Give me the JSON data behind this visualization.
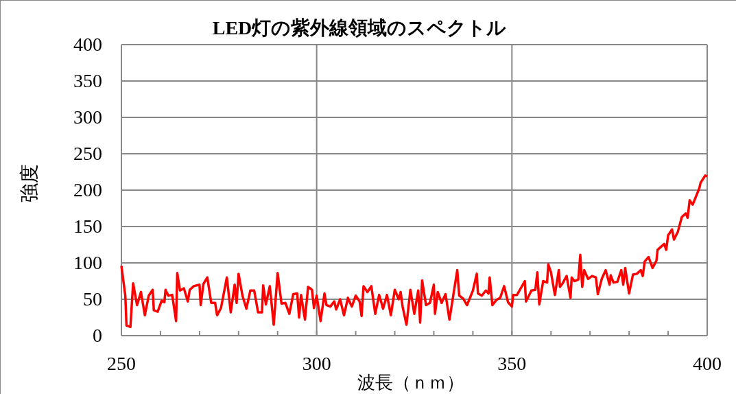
{
  "chart_data": {
    "type": "line",
    "title": "LED灯の紫外線領域のスペクトル",
    "xlabel": "波長（ｎｍ）",
    "ylabel": "強度",
    "xlim": [
      250,
      400
    ],
    "xticks": [
      250,
      {
        "value": 260,
        "label": null
      },
      {
        "value": 270,
        "label": null
      },
      {
        "value": 280,
        "label": null
      },
      {
        "value": 290,
        "label": null
      },
      300,
      {
        "value": 310,
        "label": null
      },
      {
        "value": 320,
        "label": null
      },
      {
        "value": 330,
        "label": null
      },
      {
        "value": 340,
        "label": null
      },
      350,
      {
        "value": 360,
        "label": null
      },
      {
        "value": 370,
        "label": null
      },
      {
        "value": 380,
        "label": null
      },
      {
        "value": 390,
        "label": null
      },
      400
    ],
    "ylim": [
      0,
      400
    ],
    "yticks": [
      0,
      50,
      100,
      150,
      200,
      250,
      300,
      350,
      400
    ],
    "grid": true,
    "marker": "none",
    "line_style": "solid",
    "series": [
      {
        "color": "#ff0000",
        "x": [
          250,
          251,
          251.3,
          252.3,
          253,
          254,
          255,
          256,
          257,
          258,
          258.3,
          259.3,
          260.3,
          261,
          261.3,
          262,
          263,
          264,
          264.3,
          265,
          266,
          267,
          267.5,
          268.5,
          270,
          270.3,
          271,
          272,
          273,
          274,
          274.5,
          275.5,
          277,
          278,
          279,
          279.5,
          280,
          281,
          282,
          283,
          284,
          285,
          286,
          286.3,
          287,
          288,
          289,
          290,
          291,
          292,
          293,
          294,
          295,
          295.5,
          296,
          297,
          297.8,
          298.8,
          299.3,
          300,
          301,
          302,
          302.5,
          303.5,
          304.5,
          305,
          306,
          307,
          308,
          309,
          310,
          311,
          311.5,
          312,
          313,
          314,
          315,
          316,
          317,
          318,
          319,
          320,
          321,
          321.5,
          322,
          323,
          324,
          325,
          326,
          326.5,
          327,
          328,
          329,
          330,
          330.3,
          331,
          332,
          333,
          334,
          336,
          336.5,
          337.5,
          338.5,
          340,
          341,
          341.3,
          342.3,
          343.3,
          344,
          344.3,
          345,
          346,
          347,
          348,
          349,
          350,
          350.3,
          351.3,
          353.3,
          353.6,
          355,
          356,
          356.5,
          357,
          358,
          359,
          359.3,
          360,
          361,
          362,
          362.3,
          363,
          364,
          365,
          365.3,
          366,
          367,
          367.5,
          368,
          368.5,
          369.5,
          370.5,
          371.5,
          372,
          373,
          374,
          375,
          375.3,
          376,
          377,
          378,
          378.5,
          379,
          380,
          381,
          382,
          383,
          383.5,
          384,
          385,
          386,
          387,
          387.3,
          389,
          389.5,
          390,
          391,
          391.5,
          392.5,
          393.5,
          394.5,
          395,
          395.5,
          396.3,
          398,
          398.3,
          399.5,
          400
        ],
        "values": [
          96,
          55,
          14,
          12,
          72,
          42,
          60,
          28,
          55,
          63,
          35,
          33,
          48,
          46,
          63,
          55,
          56,
          20,
          86,
          62,
          65,
          47,
          63,
          68,
          70,
          42,
          71,
          80,
          45,
          45,
          28,
          38,
          80,
          32,
          70,
          45,
          85,
          55,
          37,
          62,
          62,
          32,
          32,
          69,
          43,
          68,
          15,
          86,
          44,
          45,
          30,
          57,
          58,
          25,
          56,
          22,
          67,
          63,
          38,
          55,
          20,
          58,
          42,
          40,
          47,
          36,
          50,
          28,
          52,
          40,
          55,
          47,
          27,
          68,
          60,
          68,
          30,
          56,
          37,
          56,
          28,
          63,
          50,
          60,
          40,
          15,
          63,
          30,
          62,
          18,
          76,
          42,
          45,
          70,
          30,
          60,
          45,
          57,
          22,
          90,
          55,
          51,
          42,
          62,
          85,
          58,
          55,
          62,
          58,
          80,
          42,
          49,
          52,
          68,
          46,
          40,
          56,
          56,
          75,
          47,
          62,
          63,
          87,
          43,
          75,
          73,
          98,
          87,
          56,
          90,
          67,
          72,
          82,
          52,
          80,
          75,
          77,
          111,
          67,
          90,
          78,
          82,
          80,
          57,
          78,
          90,
          70,
          83,
          73,
          74,
          90,
          70,
          93,
          58,
          84,
          85,
          90,
          82,
          102,
          108,
          93,
          103,
          118,
          126,
          118,
          138,
          146,
          132,
          143,
          163,
          168,
          162,
          186,
          180,
          203,
          210,
          220,
          219
        ]
      }
    ]
  }
}
